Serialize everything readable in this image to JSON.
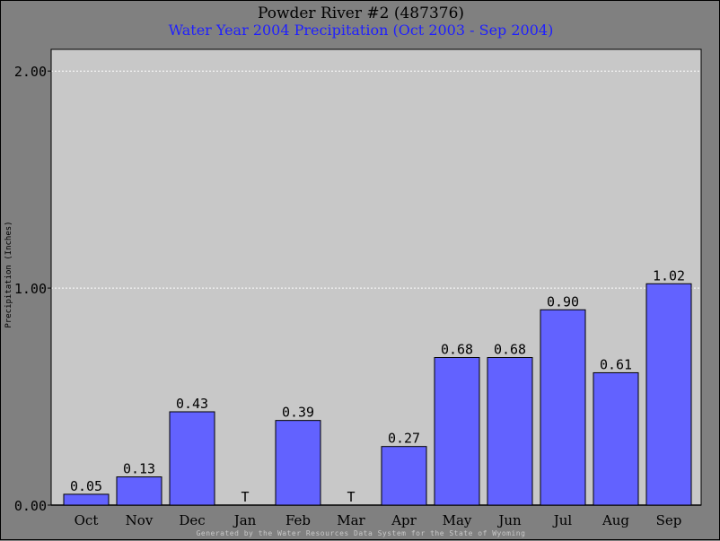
{
  "chart_data": {
    "type": "bar",
    "title": "Powder River #2 (487376)",
    "subtitle": "Water Year 2004 Precipitation (Oct 2003 - Sep 2004)",
    "xlabel": "",
    "ylabel": "Precipitation (Inches)",
    "categories": [
      "Oct",
      "Nov",
      "Dec",
      "Jan",
      "Feb",
      "Mar",
      "Apr",
      "May",
      "Jun",
      "Jul",
      "Aug",
      "Sep"
    ],
    "values": [
      0.05,
      0.13,
      0.43,
      0,
      0.39,
      0,
      0.27,
      0.68,
      0.68,
      0.9,
      0.61,
      1.02
    ],
    "data_labels": [
      "0.05",
      "0.13",
      "0.43",
      "T",
      "0.39",
      "T",
      "0.27",
      "0.68",
      "0.68",
      "0.90",
      "0.61",
      "1.02"
    ],
    "yticks": [
      "0.00",
      "1.00",
      "2.00"
    ],
    "ytick_values": [
      0,
      1,
      2
    ],
    "ylim": [
      0,
      2.1
    ],
    "grid": true,
    "legend": "none",
    "colors": {
      "bar": "#6262ff",
      "plot_bg": "#c8c8c8",
      "page_bg": "#808080",
      "subtitle": "#1f1fff",
      "grid": "#ffffff"
    },
    "footer": "Generated by the Water Resources Data System for the State of Wyoming"
  }
}
